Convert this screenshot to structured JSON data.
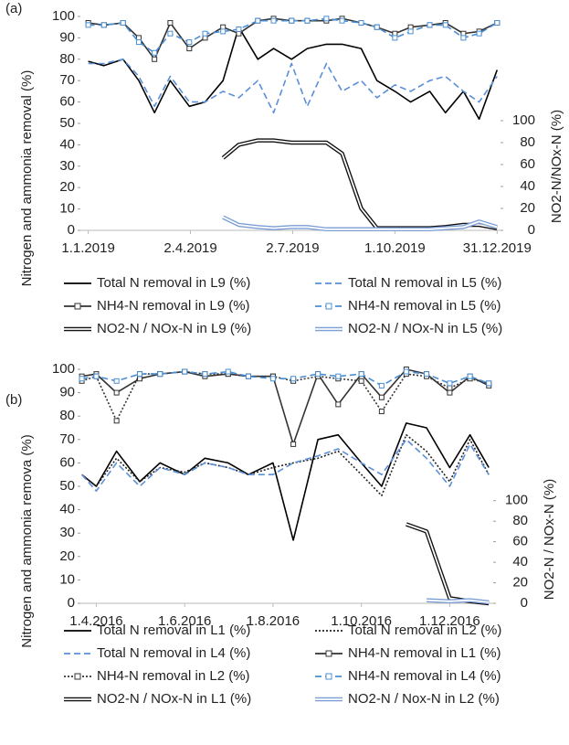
{
  "chart_data": [
    {
      "type": "line",
      "label": "(a)",
      "y_label": "Nitrogen and ammonia removal (%)",
      "y2_label": "NO2-N/NOx-N (%)",
      "x": [
        "2019-01-01",
        "2019-01-15",
        "2019-02-01",
        "2019-02-15",
        "2019-03-01",
        "2019-03-15",
        "2019-04-01",
        "2019-04-15",
        "2019-05-01",
        "2019-05-15",
        "2019-06-01",
        "2019-06-15",
        "2019-07-01",
        "2019-07-15",
        "2019-08-01",
        "2019-08-15",
        "2019-09-01",
        "2019-09-15",
        "2019-10-01",
        "2019-10-15",
        "2019-11-01",
        "2019-11-15",
        "2019-12-01",
        "2019-12-15",
        "2019-12-31"
      ],
      "xlim": [
        "2018-12-25",
        "2020-01-03"
      ],
      "xticks": [
        {
          "value": "2019-01-01",
          "label": "1.1.2019"
        },
        {
          "value": "2019-04-02",
          "label": "2.4.2019"
        },
        {
          "value": "2019-07-02",
          "label": "2.7.2019"
        },
        {
          "value": "2019-10-01",
          "label": "1.10.2019"
        },
        {
          "value": "2019-12-31",
          "label": "31.12.2019"
        }
      ],
      "ylim": [
        0,
        100
      ],
      "yticks": [
        0,
        10,
        20,
        30,
        40,
        50,
        60,
        70,
        80,
        90,
        100
      ],
      "y2lim": [
        0,
        195
      ],
      "y2ticks": [
        0,
        20,
        40,
        60,
        80,
        100
      ],
      "series": [
        {
          "name": "Total N removal in L9 (%)",
          "color": "#000000",
          "dash": "solid",
          "marker": "none",
          "double": false,
          "values": [
            79,
            77,
            80,
            70,
            55,
            70,
            58,
            60,
            70,
            95,
            80,
            85,
            80,
            85,
            87,
            87,
            85,
            70,
            65,
            60,
            65,
            55,
            65,
            52,
            75
          ]
        },
        {
          "name": "Total N removal in L5 (%)",
          "color": "#5b8fd9",
          "dash": "dashed",
          "marker": "none",
          "double": false,
          "values": [
            78,
            78,
            80,
            72,
            58,
            72,
            60,
            60,
            65,
            62,
            70,
            55,
            78,
            58,
            78,
            65,
            70,
            62,
            68,
            65,
            70,
            72,
            65,
            60,
            72
          ]
        },
        {
          "name": "NH4-N removal in L9 (%)",
          "color": "#333333",
          "dash": "solid",
          "marker": "square",
          "double": false,
          "values": [
            97,
            96,
            97,
            90,
            80,
            97,
            85,
            90,
            95,
            92,
            98,
            99,
            98,
            98,
            98,
            99,
            97,
            95,
            92,
            95,
            96,
            97,
            92,
            93,
            97
          ]
        },
        {
          "name": "NH4-N removal in L5 (%)",
          "color": "#4a8fd4",
          "dash": "dashed",
          "marker": "square",
          "double": false,
          "values": [
            96,
            96,
            97,
            88,
            83,
            92,
            88,
            92,
            93,
            94,
            98,
            98,
            98,
            98,
            99,
            98,
            97,
            95,
            90,
            93,
            96,
            96,
            90,
            92,
            97
          ]
        },
        {
          "name": "NO2-N / NOx-N in L9 (%)",
          "color": "#111111",
          "dash": "solid",
          "marker": "none",
          "double": true,
          "axis": "y2",
          "values": [
            null,
            null,
            null,
            null,
            null,
            null,
            null,
            null,
            66,
            78,
            82,
            82,
            80,
            80,
            80,
            70,
            20,
            2,
            2,
            2,
            2,
            3,
            5,
            5,
            2
          ]
        },
        {
          "name": "NO2-N / NOx-N in L5 (%)",
          "color": "#7b9ed6",
          "dash": "solid",
          "marker": "none",
          "double": true,
          "axis": "y2",
          "values": [
            null,
            null,
            null,
            null,
            null,
            null,
            null,
            null,
            12,
            5,
            3,
            2,
            3,
            3,
            1,
            1,
            1,
            1,
            1,
            1,
            1,
            2,
            3,
            8,
            3
          ]
        }
      ]
    },
    {
      "type": "line",
      "label": "(b)",
      "y_label": "Nitrogen and ammonia remova (%)",
      "y2_label": "NO2-N / NOx-N (%)",
      "x": [
        "2016-03-22",
        "2016-04-01",
        "2016-04-15",
        "2016-05-01",
        "2016-05-15",
        "2016-06-01",
        "2016-06-15",
        "2016-07-01",
        "2016-07-15",
        "2016-08-01",
        "2016-08-15",
        "2016-09-01",
        "2016-09-15",
        "2016-10-01",
        "2016-10-15",
        "2016-11-01",
        "2016-11-15",
        "2016-12-01",
        "2016-12-15",
        "2016-12-28"
      ],
      "xlim": [
        "2016-03-21",
        "2016-12-31"
      ],
      "xticks": [
        {
          "value": "2016-04-01",
          "label": "1.4.2016"
        },
        {
          "value": "2016-06-01",
          "label": "1.6.2016"
        },
        {
          "value": "2016-08-01",
          "label": "1.8.2016"
        },
        {
          "value": "2016-10-01",
          "label": "1.10.2016"
        },
        {
          "value": "2016-12-01",
          "label": "1.12.2016"
        }
      ],
      "ylim": [
        0,
        100
      ],
      "yticks": [
        0,
        10,
        20,
        30,
        40,
        50,
        60,
        70,
        80,
        90,
        100
      ],
      "y2lim": [
        0,
        228
      ],
      "y2ticks": [
        0,
        20,
        40,
        60,
        80,
        100
      ],
      "series": [
        {
          "name": "Total N removal in L1 (%)",
          "color": "#000000",
          "dash": "solid",
          "marker": "none",
          "double": false,
          "values": [
            55,
            50,
            65,
            52,
            60,
            55,
            62,
            60,
            55,
            60,
            27,
            70,
            72,
            60,
            50,
            77,
            75,
            58,
            72,
            58
          ]
        },
        {
          "name": "Total N removal in L2 (%)",
          "color": "#222222",
          "dash": "dotted",
          "marker": "none",
          "double": false,
          "values": [
            55,
            50,
            62,
            52,
            58,
            56,
            60,
            58,
            55,
            58,
            60,
            62,
            65,
            55,
            46,
            72,
            65,
            52,
            70,
            55
          ]
        },
        {
          "name": "Total N removal in L4 (%)",
          "color": "#5b8fd9",
          "dash": "dashed",
          "marker": "none",
          "double": false,
          "values": [
            55,
            48,
            60,
            50,
            58,
            55,
            60,
            58,
            55,
            55,
            60,
            63,
            66,
            60,
            55,
            70,
            62,
            50,
            68,
            55
          ]
        },
        {
          "name": "NH4-N removal in L1 (%)",
          "color": "#333333",
          "dash": "solid",
          "marker": "square",
          "double": false,
          "values": [
            97,
            98,
            90,
            96,
            98,
            99,
            97,
            98,
            97,
            97,
            68,
            98,
            85,
            98,
            88,
            100,
            98,
            90,
            97,
            93
          ]
        },
        {
          "name": "NH4-N removal in L2 (%)",
          "color": "#333333",
          "dash": "dotted",
          "marker": "square",
          "double": false,
          "values": [
            95,
            97,
            78,
            98,
            98,
            99,
            98,
            98,
            97,
            97,
            95,
            97,
            96,
            95,
            82,
            98,
            97,
            92,
            96,
            94
          ]
        },
        {
          "name": "NH4-N removal in L4 (%)",
          "color": "#4a8fd4",
          "dash": "dashed",
          "marker": "square",
          "double": false,
          "values": [
            96,
            97,
            95,
            98,
            98,
            99,
            98,
            99,
            97,
            96,
            96,
            98,
            97,
            98,
            93,
            99,
            98,
            94,
            97,
            94
          ]
        },
        {
          "name": "NO2-N / NOx-N in L1 (%)",
          "color": "#111111",
          "dash": "solid",
          "marker": "none",
          "double": true,
          "axis": "y2",
          "values": [
            null,
            null,
            null,
            null,
            null,
            null,
            null,
            null,
            null,
            null,
            null,
            null,
            null,
            null,
            null,
            77,
            70,
            5,
            2,
            0
          ]
        },
        {
          "name": "NO2-N / Nox-N in L2 (%)",
          "color": "#7b9ed6",
          "dash": "solid",
          "marker": "none",
          "double": true,
          "axis": "y2",
          "values": [
            null,
            null,
            null,
            null,
            null,
            null,
            null,
            null,
            null,
            null,
            null,
            null,
            null,
            null,
            null,
            null,
            3,
            2,
            3,
            1
          ]
        }
      ]
    }
  ]
}
